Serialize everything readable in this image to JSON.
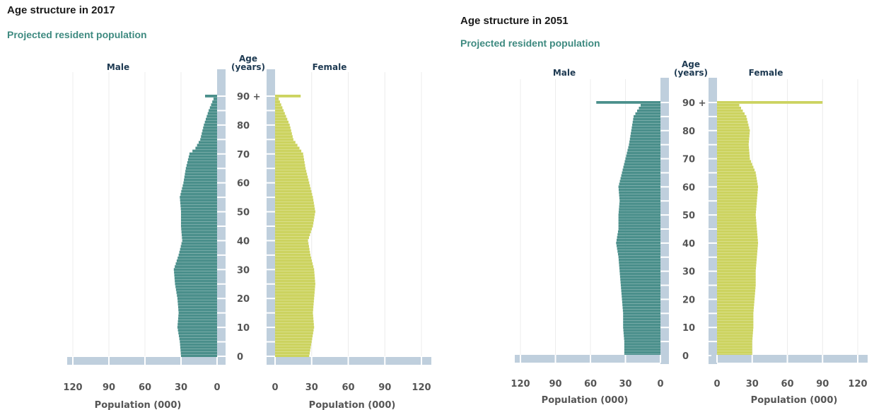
{
  "colors": {
    "male": "#4a8f8b",
    "female": "#ccd35f",
    "axis": "#bfcfdd",
    "grid": "#ececec",
    "subtitle": "#3e8a80"
  },
  "chart_data": [
    {
      "type": "bar",
      "title": "Age structure in 2017",
      "subtitle": "Projected resident population",
      "left_label": "Male",
      "right_label": "Female",
      "age_label": [
        "Age",
        "(years)"
      ],
      "xlabel": "Population (000)",
      "xlim": [
        0,
        120
      ],
      "x_ticks": [
        0,
        30,
        60,
        90,
        120
      ],
      "y_ticks": [
        0,
        10,
        20,
        30,
        40,
        50,
        60,
        70,
        80,
        90
      ],
      "y_tick_labels": [
        "0",
        "10",
        "20",
        "30",
        "40",
        "50",
        "60",
        "70",
        "80",
        "90 +"
      ],
      "ages": [
        0,
        5,
        10,
        15,
        20,
        25,
        30,
        35,
        40,
        45,
        50,
        55,
        60,
        65,
        70,
        72,
        75,
        80,
        85,
        89,
        90
      ],
      "series": [
        {
          "name": "Male",
          "values": [
            30,
            31,
            33,
            32,
            33,
            35,
            36,
            32,
            29,
            30,
            30,
            31,
            28,
            26,
            23,
            18,
            14,
            11,
            7,
            3,
            10
          ]
        },
        {
          "name": "Female",
          "values": [
            28,
            30,
            32,
            31,
            32,
            33,
            32,
            29,
            27,
            31,
            33,
            31,
            28,
            25,
            23,
            20,
            15,
            12,
            7,
            3,
            21
          ]
        }
      ]
    },
    {
      "type": "bar",
      "title": "Age structure in 2051",
      "subtitle": "Projected resident population",
      "left_label": "Male",
      "right_label": "Female",
      "age_label": [
        "Age",
        "(years)"
      ],
      "xlabel": "Population (000)",
      "xlim": [
        0,
        120
      ],
      "x_ticks": [
        0,
        30,
        60,
        90,
        120
      ],
      "y_ticks": [
        0,
        10,
        20,
        30,
        40,
        50,
        60,
        70,
        80,
        90
      ],
      "y_tick_labels": [
        "0",
        "10",
        "20",
        "30",
        "40",
        "50",
        "60",
        "70",
        "80",
        "90 +"
      ],
      "ages": [
        0,
        5,
        10,
        15,
        20,
        25,
        30,
        35,
        40,
        45,
        50,
        55,
        60,
        65,
        70,
        75,
        80,
        85,
        89,
        90
      ],
      "series": [
        {
          "name": "Male",
          "values": [
            31,
            31,
            32,
            32,
            33,
            34,
            35,
            36,
            38,
            36,
            36,
            35,
            36,
            33,
            30,
            27,
            25,
            23,
            17,
            55
          ]
        },
        {
          "name": "Female",
          "values": [
            30,
            30,
            31,
            31,
            32,
            33,
            33,
            34,
            35,
            34,
            33,
            34,
            35,
            33,
            28,
            27,
            28,
            25,
            19,
            90
          ]
        }
      ]
    }
  ]
}
